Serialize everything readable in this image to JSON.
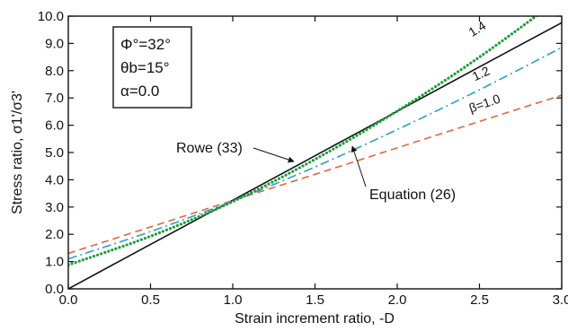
{
  "chart_data": {
    "type": "line",
    "xlabel": "Strain increment ratio, -D",
    "ylabel": "Stress ratio, σ1'/σ3'",
    "xlim": [
      0,
      3
    ],
    "ylim": [
      0,
      10
    ],
    "xticks": [
      "0.0",
      "0.5",
      "1.0",
      "1.5",
      "2.0",
      "2.5",
      "3.0"
    ],
    "yticks": [
      "0.0",
      "1.0",
      "2.0",
      "3.0",
      "4.0",
      "5.0",
      "6.0",
      "7.0",
      "8.0",
      "9.0",
      "10.0"
    ],
    "grid": false,
    "parameters": {
      "phi": "Φ°=32°",
      "theta_b": "θb=15°",
      "alpha": "α=0.0"
    },
    "annotations": {
      "rowe": "Rowe (33)",
      "equation": "Equation (26)"
    },
    "series": [
      {
        "name": "Rowe (33)",
        "color": "#111111",
        "style": "solid",
        "x": [
          0.0,
          0.5,
          1.0,
          1.5,
          2.0,
          2.5,
          3.0
        ],
        "y": [
          0.0,
          1.63,
          3.25,
          4.88,
          6.51,
          8.14,
          9.76
        ]
      },
      {
        "label": "β=1.0",
        "color": "#e8643c",
        "style": "dashed",
        "x": [
          0.0,
          0.5,
          1.0,
          1.5,
          2.0,
          2.5,
          3.0
        ],
        "y": [
          1.3,
          2.27,
          3.24,
          4.2,
          5.17,
          6.14,
          7.1
        ]
      },
      {
        "label": "1.2",
        "color": "#2a9fd0",
        "style": "dashdot",
        "x": [
          0.0,
          0.5,
          1.0,
          1.5,
          2.0,
          2.5,
          3.0
        ],
        "y": [
          1.1,
          2.1,
          3.22,
          4.47,
          5.84,
          7.3,
          8.85
        ]
      },
      {
        "label": "1.4",
        "color": "#1e9e3c",
        "style": "dotted",
        "x": [
          0.0,
          0.5,
          1.0,
          1.5,
          2.0,
          2.5,
          3.0
        ],
        "y": [
          0.88,
          1.93,
          3.2,
          4.75,
          6.52,
          8.5,
          10.7
        ]
      }
    ]
  }
}
